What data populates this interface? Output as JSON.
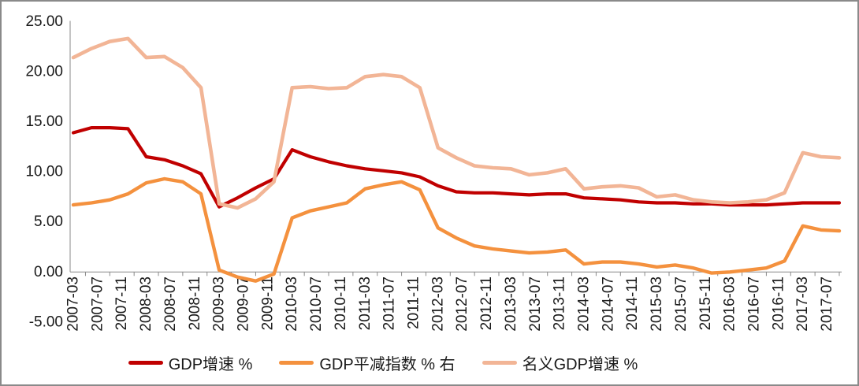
{
  "chart_data": {
    "type": "line",
    "title": "",
    "grid": "none",
    "legend_position": "bottom",
    "x": [
      "2007-03",
      "2007-06",
      "2007-09",
      "2007-12",
      "2008-03",
      "2008-06",
      "2008-09",
      "2008-12",
      "2009-03",
      "2009-06",
      "2009-09",
      "2009-12",
      "2010-03",
      "2010-06",
      "2010-09",
      "2010-12",
      "2011-03",
      "2011-06",
      "2011-09",
      "2011-12",
      "2012-03",
      "2012-06",
      "2012-09",
      "2012-12",
      "2013-03",
      "2013-06",
      "2013-09",
      "2013-12",
      "2014-03",
      "2014-06",
      "2014-09",
      "2014-12",
      "2015-03",
      "2015-06",
      "2015-09",
      "2015-12",
      "2016-03",
      "2016-06",
      "2016-09",
      "2016-12",
      "2017-03",
      "2017-06",
      "2017-09"
    ],
    "series": [
      {
        "name": "GDP增速 %",
        "color": "#C00000",
        "axis": "left",
        "values": [
          13.9,
          14.4,
          14.4,
          14.3,
          11.5,
          11.2,
          10.6,
          9.8,
          6.5,
          7.4,
          8.4,
          9.3,
          12.2,
          11.5,
          11.0,
          10.6,
          10.3,
          10.1,
          9.9,
          9.5,
          8.6,
          8.0,
          7.9,
          7.9,
          7.8,
          7.7,
          7.8,
          7.8,
          7.4,
          7.3,
          7.2,
          7.0,
          6.9,
          6.9,
          6.8,
          6.8,
          6.7,
          6.7,
          6.7,
          6.8,
          6.9,
          6.9,
          6.9
        ]
      },
      {
        "name": "GDP平减指数 % 右",
        "color": "#F4913E",
        "axis": "right",
        "values": [
          6.7,
          6.9,
          7.2,
          7.8,
          8.9,
          9.3,
          9.0,
          7.8,
          0.2,
          -0.5,
          -0.9,
          -0.2,
          5.4,
          6.1,
          6.5,
          6.9,
          8.3,
          8.7,
          9.0,
          8.2,
          4.4,
          3.4,
          2.6,
          2.3,
          2.1,
          1.9,
          2.0,
          2.2,
          0.8,
          1.0,
          1.0,
          0.8,
          0.5,
          0.7,
          0.4,
          -0.1,
          0.0,
          0.2,
          0.4,
          1.1,
          4.6,
          4.2,
          4.1
        ]
      },
      {
        "name": "名义GDP增速 %",
        "color": "#F2B596",
        "axis": "left",
        "values": [
          21.4,
          22.3,
          23.0,
          23.3,
          21.4,
          21.5,
          20.4,
          18.4,
          6.8,
          6.4,
          7.3,
          9.0,
          18.4,
          18.5,
          18.3,
          18.4,
          19.5,
          19.7,
          19.5,
          18.4,
          12.4,
          11.4,
          10.6,
          10.4,
          10.3,
          9.7,
          9.9,
          10.3,
          8.3,
          8.5,
          8.6,
          8.4,
          7.5,
          7.7,
          7.2,
          7.0,
          6.9,
          7.0,
          7.2,
          7.9,
          11.9,
          11.5,
          11.4
        ]
      }
    ],
    "y_axis": {
      "min": -5,
      "max": 25,
      "tick_values": [
        25,
        20,
        15,
        10,
        5,
        0,
        -5
      ],
      "tick_labels": [
        "25.00",
        "20.00",
        "15.00",
        "10.00",
        "5.00",
        "0.00",
        "-5.00"
      ]
    },
    "x_axis": {
      "tick_labels": [
        "2007-03",
        "2007-07",
        "2007-11",
        "2008-03",
        "2008-07",
        "2008-11",
        "2009-03",
        "2009-07",
        "2009-11",
        "2010-03",
        "2010-07",
        "2010-11",
        "2011-03",
        "2011-07",
        "2011-11",
        "2012-03",
        "2012-07",
        "2012-11",
        "2013-03",
        "2013-07",
        "2013-11",
        "2014-03",
        "2014-07",
        "2014-11",
        "2015-03",
        "2015-07",
        "2015-11",
        "2016-03",
        "2016-07",
        "2016-11",
        "2017-03",
        "2017-07"
      ]
    },
    "axis_color": "#898989"
  }
}
